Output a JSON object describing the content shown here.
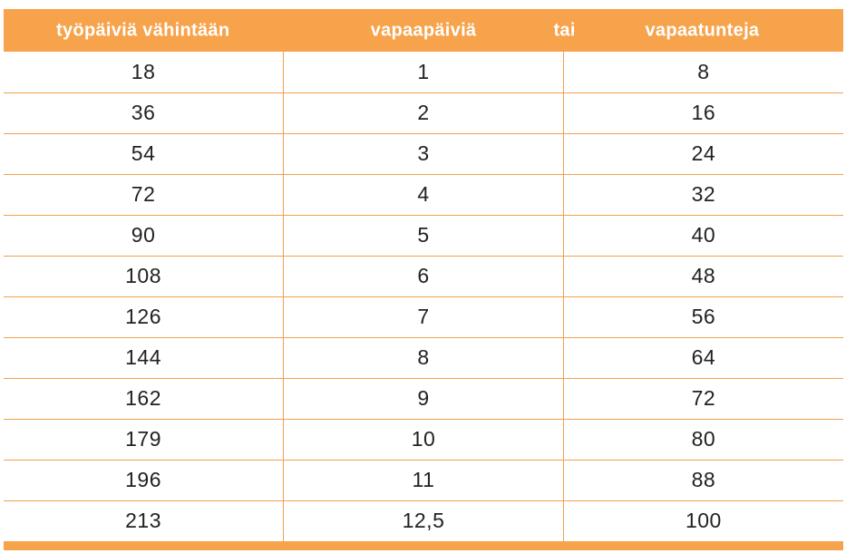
{
  "table": {
    "headers": {
      "work_days": "työpäiviä vähintään",
      "days_off": "vapaapäiviä",
      "conjunction": "tai",
      "hours_off": "vapaatunteja"
    },
    "rows": [
      [
        "18",
        "1",
        "8"
      ],
      [
        "36",
        "2",
        "16"
      ],
      [
        "54",
        "3",
        "24"
      ],
      [
        "72",
        "4",
        "32"
      ],
      [
        "90",
        "5",
        "40"
      ],
      [
        "108",
        "6",
        "48"
      ],
      [
        "126",
        "7",
        "56"
      ],
      [
        "144",
        "8",
        "64"
      ],
      [
        "162",
        "9",
        "72"
      ],
      [
        "179",
        "10",
        "80"
      ],
      [
        "196",
        "11",
        "88"
      ],
      [
        "213",
        "12,5",
        "100"
      ]
    ]
  },
  "colors": {
    "header_background": "#F7A34C",
    "grid_line": "#F0A14F",
    "header_text": "#FFFFFF",
    "body_text": "#222222",
    "page_background": "#FFFFFF"
  }
}
